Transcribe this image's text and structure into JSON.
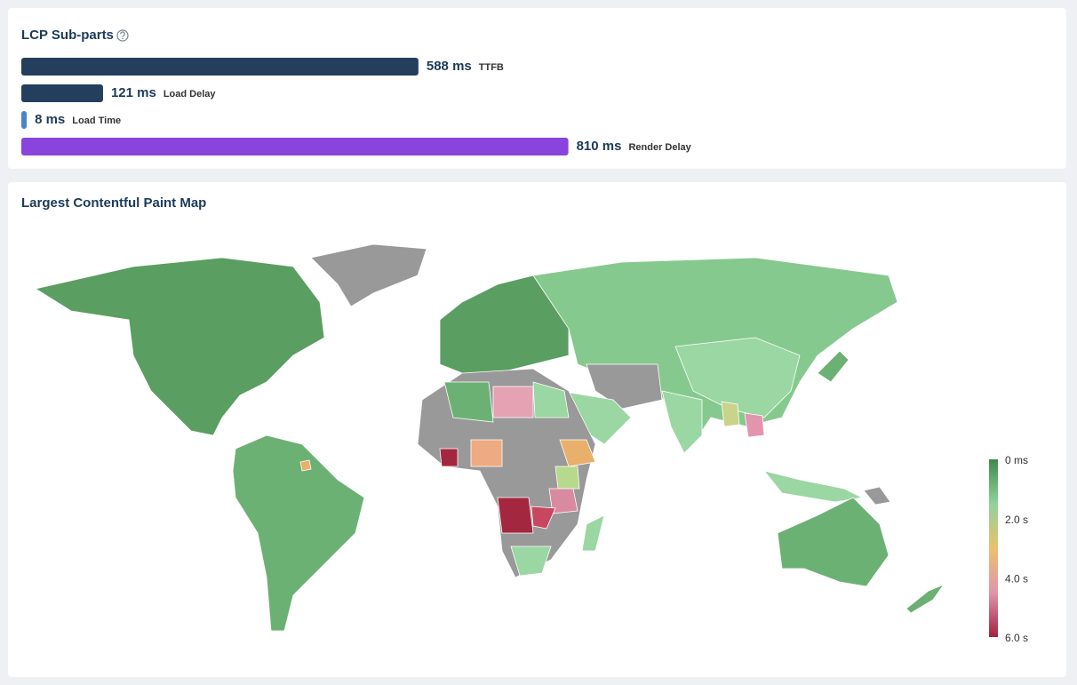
{
  "lcp_subparts": {
    "title": "LCP Sub-parts",
    "items": [
      {
        "value": 588,
        "value_label": "588 ms",
        "label": "TTFB",
        "color": "#243f5e"
      },
      {
        "value": 121,
        "value_label": "121 ms",
        "label": "Load Delay",
        "color": "#243f5e"
      },
      {
        "value": 8,
        "value_label": "8 ms",
        "label": "Load Time",
        "color": "#4a86c5"
      },
      {
        "value": 810,
        "value_label": "810 ms",
        "label": "Render Delay",
        "color": "#8844dd"
      }
    ]
  },
  "map": {
    "title": "Largest Contentful Paint Map",
    "legend": {
      "range": [
        0,
        6000
      ],
      "ticks": [
        {
          "value": 0,
          "label": "0 ms"
        },
        {
          "value": 2000,
          "label": "2.0 s"
        },
        {
          "value": 4000,
          "label": "4.0 s"
        },
        {
          "value": 6000,
          "label": "6.0 s"
        }
      ],
      "colors": [
        "#3f8a4b",
        "#8fd39b",
        "#ecc06e",
        "#e095ad",
        "#a3223f"
      ]
    }
  }
}
